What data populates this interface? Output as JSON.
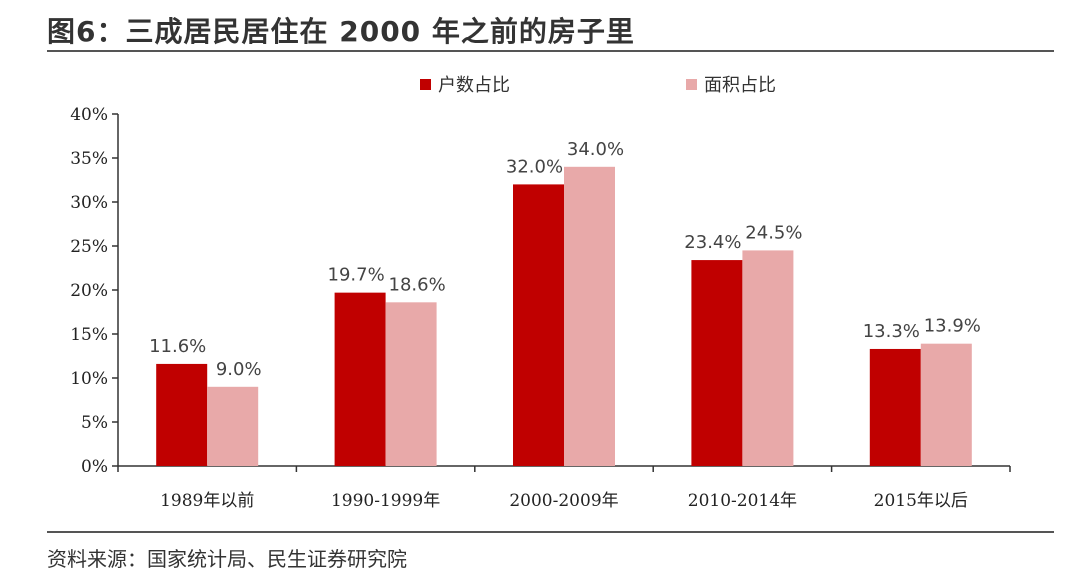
{
  "figure": {
    "title": "图6：三成居民居住在 2000 年之前的房子里",
    "source": "资料来源：国家统计局、民生证券研究院"
  },
  "colors": {
    "series_households": "#C00000",
    "series_area": "#E8A9A9",
    "axis": "#333333"
  },
  "chart_data": {
    "type": "bar",
    "title": "",
    "xlabel": "",
    "ylabel": "",
    "categories": [
      "1989年以前",
      "1990-1999年",
      "2000-2009年",
      "2010-2014年",
      "2015年以后"
    ],
    "series": [
      {
        "name": "户数占比",
        "values": [
          11.6,
          19.7,
          32.0,
          23.4,
          13.3
        ],
        "labels": [
          "11.6%",
          "19.7%",
          "32.0%",
          "23.4%",
          "13.3%"
        ]
      },
      {
        "name": "面积占比",
        "values": [
          9.0,
          18.6,
          34.0,
          24.5,
          13.9
        ],
        "labels": [
          "9.0%",
          "18.6%",
          "34.0%",
          "24.5%",
          "13.9%"
        ]
      }
    ],
    "ylim": [
      0,
      40
    ],
    "yticks": [
      0,
      5,
      10,
      15,
      20,
      25,
      30,
      35,
      40
    ],
    "ytick_labels": [
      "0%",
      "5%",
      "10%",
      "15%",
      "20%",
      "25%",
      "30%",
      "35%",
      "40%"
    ],
    "grid": false,
    "legend": "top-center"
  }
}
